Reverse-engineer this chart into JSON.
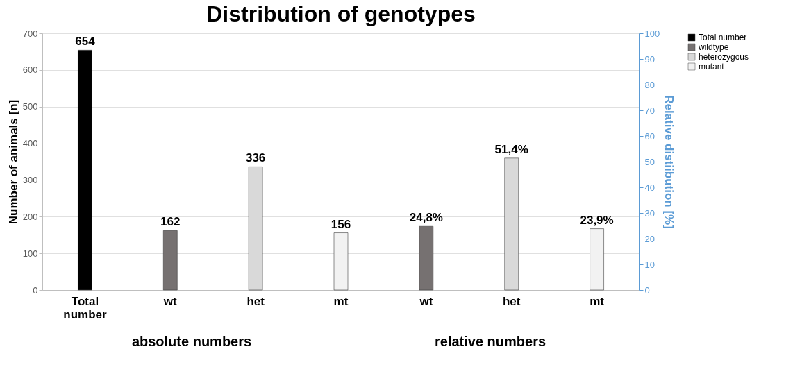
{
  "chart_data": {
    "type": "bar",
    "title": "Distribution of genotypes",
    "categories": [
      "Total number",
      "wt",
      "het",
      "mt",
      "wt",
      "het",
      "mt"
    ],
    "ylabel": "Number of animals [n]",
    "y2label": "Relative distiibution [%]",
    "ylim": [
      0,
      700
    ],
    "yticks": [
      0,
      100,
      200,
      300,
      400,
      500,
      600,
      700
    ],
    "y2lim": [
      0,
      100
    ],
    "y2ticks": [
      0,
      10,
      20,
      30,
      40,
      50,
      60,
      70,
      80,
      90,
      100
    ],
    "grid": "y",
    "legend": "top right",
    "series": [
      {
        "name": "Total number",
        "color": "#000000",
        "axis": "y",
        "values": [
          654,
          null,
          null,
          null,
          null,
          null,
          null
        ],
        "value_labels": [
          "654",
          null,
          null,
          null,
          null,
          null,
          null
        ]
      },
      {
        "name": "wildtype",
        "color": "#767171",
        "axis": "y",
        "values": [
          null,
          162,
          null,
          null,
          null,
          null,
          null
        ],
        "value_labels": [
          null,
          "162",
          null,
          null,
          null,
          null,
          null
        ]
      },
      {
        "name": "heterozygous",
        "color": "#d9d9d9",
        "axis": "y",
        "values": [
          null,
          null,
          336,
          null,
          null,
          null,
          null
        ],
        "value_labels": [
          null,
          null,
          "336",
          null,
          null,
          null,
          null
        ]
      },
      {
        "name": "mutant",
        "color": "#f2f2f2",
        "axis": "y",
        "values": [
          null,
          null,
          null,
          156,
          null,
          null,
          null
        ],
        "value_labels": [
          null,
          null,
          null,
          "156",
          null,
          null,
          null
        ]
      },
      {
        "color": "#767171",
        "axis": "y2",
        "values": [
          null,
          null,
          null,
          null,
          24.8,
          null,
          null
        ],
        "value_labels": [
          null,
          null,
          null,
          null,
          "24,8%",
          null,
          null
        ]
      },
      {
        "color": "#d9d9d9",
        "axis": "y2",
        "values": [
          null,
          null,
          null,
          null,
          null,
          51.4,
          null
        ],
        "value_labels": [
          null,
          null,
          null,
          null,
          null,
          "51,4%",
          null
        ]
      },
      {
        "color": "#f2f2f2",
        "axis": "y2",
        "values": [
          null,
          null,
          null,
          null,
          null,
          null,
          23.9
        ],
        "value_labels": [
          null,
          null,
          null,
          null,
          null,
          null,
          "23,9%"
        ]
      }
    ],
    "annotations": [
      "absolute numbers",
      "relative numbers"
    ]
  }
}
